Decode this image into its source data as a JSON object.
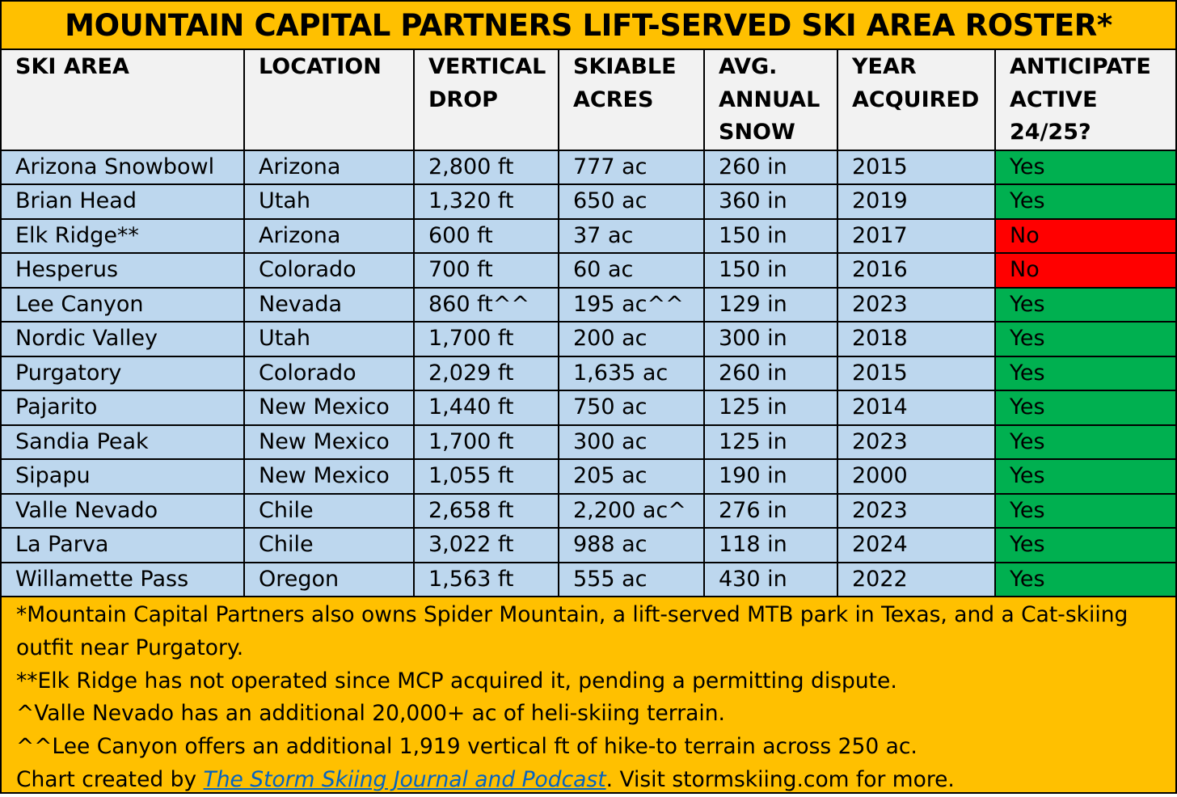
{
  "chart_data": {
    "type": "table",
    "title": "MOUNTAIN CAPITAL PARTNERS LIFT-SERVED SKI AREA ROSTER*",
    "columns": [
      "SKI AREA",
      "LOCATION",
      "VERTICAL DROP",
      "SKIABLE ACRES",
      "AVG. ANNUAL SNOW",
      "YEAR ACQUIRED",
      "ANTICIPATE ACTIVE 24/25?"
    ],
    "rows": [
      [
        "Arizona Snowbowl",
        "Arizona",
        "2,800 ft",
        "777 ac",
        "260 in",
        "2015",
        "Yes"
      ],
      [
        "Brian Head",
        "Utah",
        "1,320 ft",
        "650 ac",
        "360 in",
        "2019",
        "Yes"
      ],
      [
        "Elk Ridge**",
        "Arizona",
        "600 ft",
        "37 ac",
        "150 in",
        "2017",
        "No"
      ],
      [
        "Hesperus",
        "Colorado",
        "700 ft",
        "60 ac",
        "150 in",
        "2016",
        "No"
      ],
      [
        "Lee Canyon",
        "Nevada",
        "860 ft^^",
        "195 ac^^",
        "129 in",
        "2023",
        "Yes"
      ],
      [
        "Nordic Valley",
        "Utah",
        "1,700 ft",
        "200 ac",
        "300 in",
        "2018",
        "Yes"
      ],
      [
        "Purgatory",
        "Colorado",
        "2,029 ft",
        "1,635 ac",
        "260 in",
        "2015",
        "Yes"
      ],
      [
        "Pajarito",
        "New Mexico",
        "1,440 ft",
        "750 ac",
        "125 in",
        "2014",
        "Yes"
      ],
      [
        "Sandia Peak",
        "New Mexico",
        "1,700 ft",
        "300 ac",
        "125 in",
        "2023",
        "Yes"
      ],
      [
        "Sipapu",
        "New Mexico",
        "1,055 ft",
        "205 ac",
        "190 in",
        "2000",
        "Yes"
      ],
      [
        "Valle Nevado",
        "Chile",
        "2,658 ft",
        "2,200 ac^",
        "276 in",
        "2023",
        "Yes"
      ],
      [
        "La Parva",
        "Chile",
        "3,022 ft",
        "988 ac",
        "118 in",
        "2024",
        "Yes"
      ],
      [
        "Willamette Pass",
        "Oregon",
        "1,563 ft",
        "555 ac",
        "430 in",
        "2022",
        "Yes"
      ]
    ],
    "notes": [
      "*Mountain Capital Partners also owns Spider Mountain, a lift-served MTB park in Texas, and a Cat-skiing outfit near Purgatory.",
      "**Elk Ridge has not operated since MCP acquired it, pending a permitting dispute.",
      "^Valle Nevado has an additional 20,000+ ac of heli-skiing terrain.",
      "^^Lee Canyon offers an additional 1,919 vertical ft of hike-to terrain across 250 ac."
    ],
    "credit": {
      "prefix": "Chart created by ",
      "link_text": "The Storm Skiing Journal and Podcast",
      "suffix": ". Visit stormskiing.com for more."
    },
    "colors": {
      "title_background": "#FFC000",
      "header_background": "#F2F2F2",
      "row_background": "#BDD7EE",
      "yes_background": "#00B050",
      "no_background": "#FF0000",
      "link": "#0563C1"
    }
  }
}
